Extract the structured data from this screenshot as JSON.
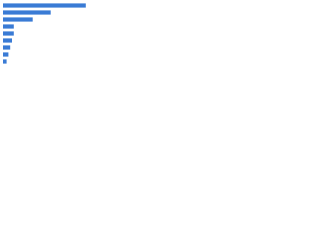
{
  "chart_data": {
    "type": "bar",
    "orientation": "horizontal",
    "categories": [
      null,
      null,
      null,
      null,
      null,
      null,
      null,
      null,
      null
    ],
    "values": [
      92,
      53,
      33,
      12,
      12,
      10,
      8,
      6,
      4
    ],
    "color": "#3a7bd5",
    "xlim": [
      0,
      100
    ]
  }
}
